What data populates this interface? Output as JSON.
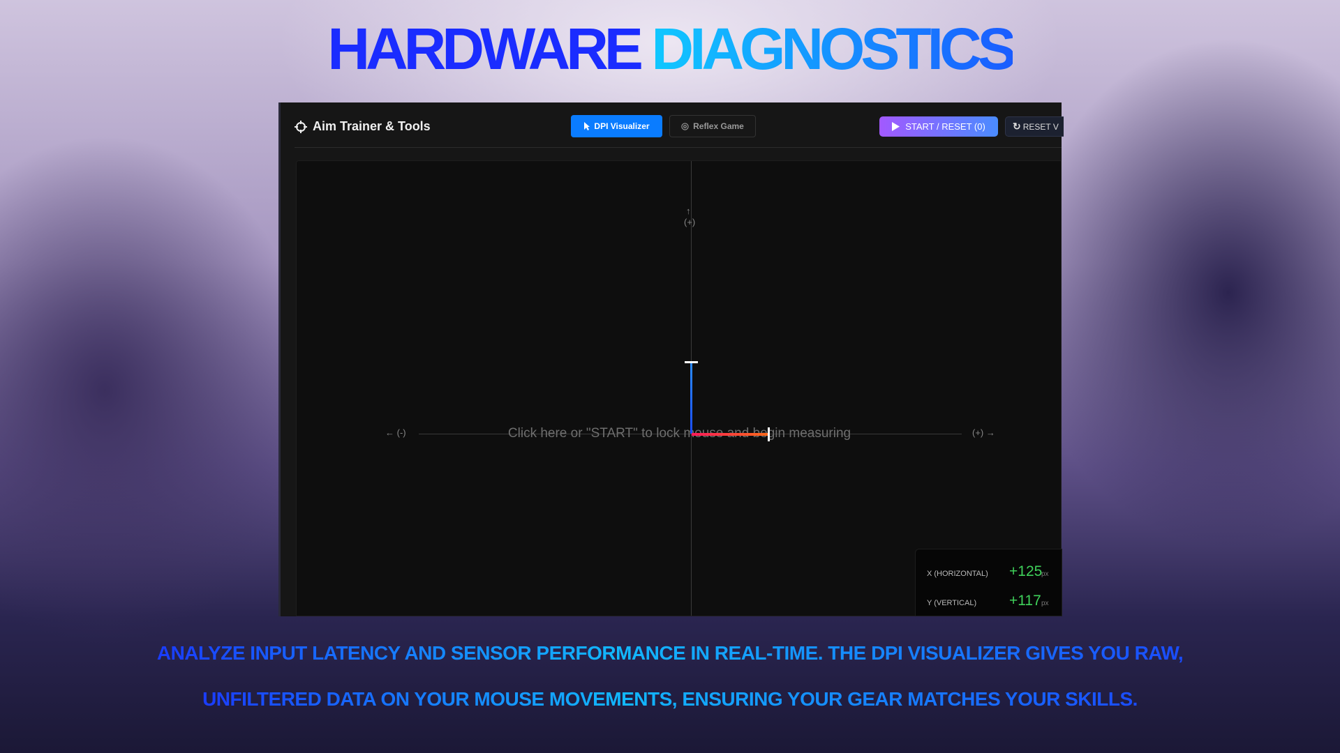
{
  "headline": {
    "part1": "HARDWARE",
    "part2": "DIAGNOSTICS"
  },
  "app": {
    "title": "Aim Trainer & Tools",
    "logo_icon": "crosshair-icon",
    "tabs": [
      {
        "label": "DPI Visualizer",
        "icon": "cursor-icon",
        "active": true
      },
      {
        "label": "Reflex Game",
        "icon": "target-icon",
        "active": false
      }
    ],
    "start_button": "START / RESET (0)",
    "reset_button": "RESET V",
    "canvas": {
      "up_arrow": "↑",
      "up_label": "(+)",
      "left_label": "← (-)",
      "right_label": "(+) →",
      "hint": "Click here or \"START\" to lock mouse and begin measuring"
    },
    "stats": {
      "x_label": "X (HORIZONTAL)",
      "x_value": "+125",
      "x_unit": "px",
      "y_label": "Y (VERTICAL)",
      "y_value": "+117",
      "y_unit": "px"
    },
    "colors": {
      "accent": "#0a7cff",
      "x_bar": "#ff3a3a",
      "y_bar": "#1a6cff",
      "value": "#3fd05a"
    }
  },
  "caption": {
    "line1": "ANALYZE INPUT LATENCY AND SENSOR PERFORMANCE IN REAL-TIME. THE DPI VISUALIZER GIVES YOU RAW,",
    "line2": "UNFILTERED DATA ON YOUR MOUSE MOVEMENTS, ENSURING YOUR GEAR MATCHES YOUR SKILLS."
  }
}
